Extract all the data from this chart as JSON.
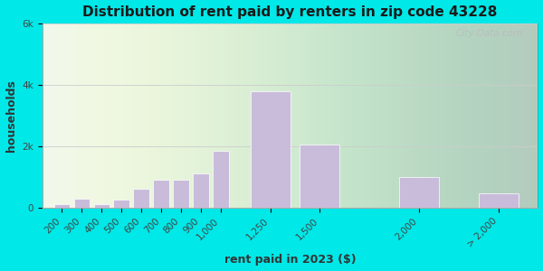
{
  "title": "Distribution of rent paid by renters in zip code 43228",
  "xlabel": "rent paid in 2023 ($)",
  "ylabel": "households",
  "bar_centers": [
    200,
    300,
    400,
    500,
    600,
    700,
    800,
    900,
    1000,
    1250,
    1500,
    2000,
    2400
  ],
  "bar_widths": [
    80,
    80,
    80,
    80,
    80,
    80,
    80,
    80,
    80,
    200,
    200,
    200,
    200
  ],
  "bar_values": [
    100,
    300,
    100,
    250,
    600,
    900,
    900,
    1100,
    1850,
    3800,
    2050,
    1000,
    450
  ],
  "bar_labels": [
    "200",
    "300",
    "400",
    "500",
    "600",
    "700",
    "800",
    "900",
    "1,000",
    "1,250",
    "1,500",
    "2,000",
    "> 2,000"
  ],
  "bar_color": "#c9bcdb",
  "bar_edge_color": "#ffffff",
  "ylim": [
    0,
    6000
  ],
  "yticks": [
    0,
    2000,
    4000,
    6000
  ],
  "ytick_labels": [
    "0",
    "2k",
    "4k",
    "6k"
  ],
  "bg_outer": "#00e8e8",
  "bg_plot": "#eef7ee",
  "title_fontsize": 11,
  "axis_label_fontsize": 9,
  "tick_fontsize": 7.5,
  "watermark_text": "City-Data.com"
}
